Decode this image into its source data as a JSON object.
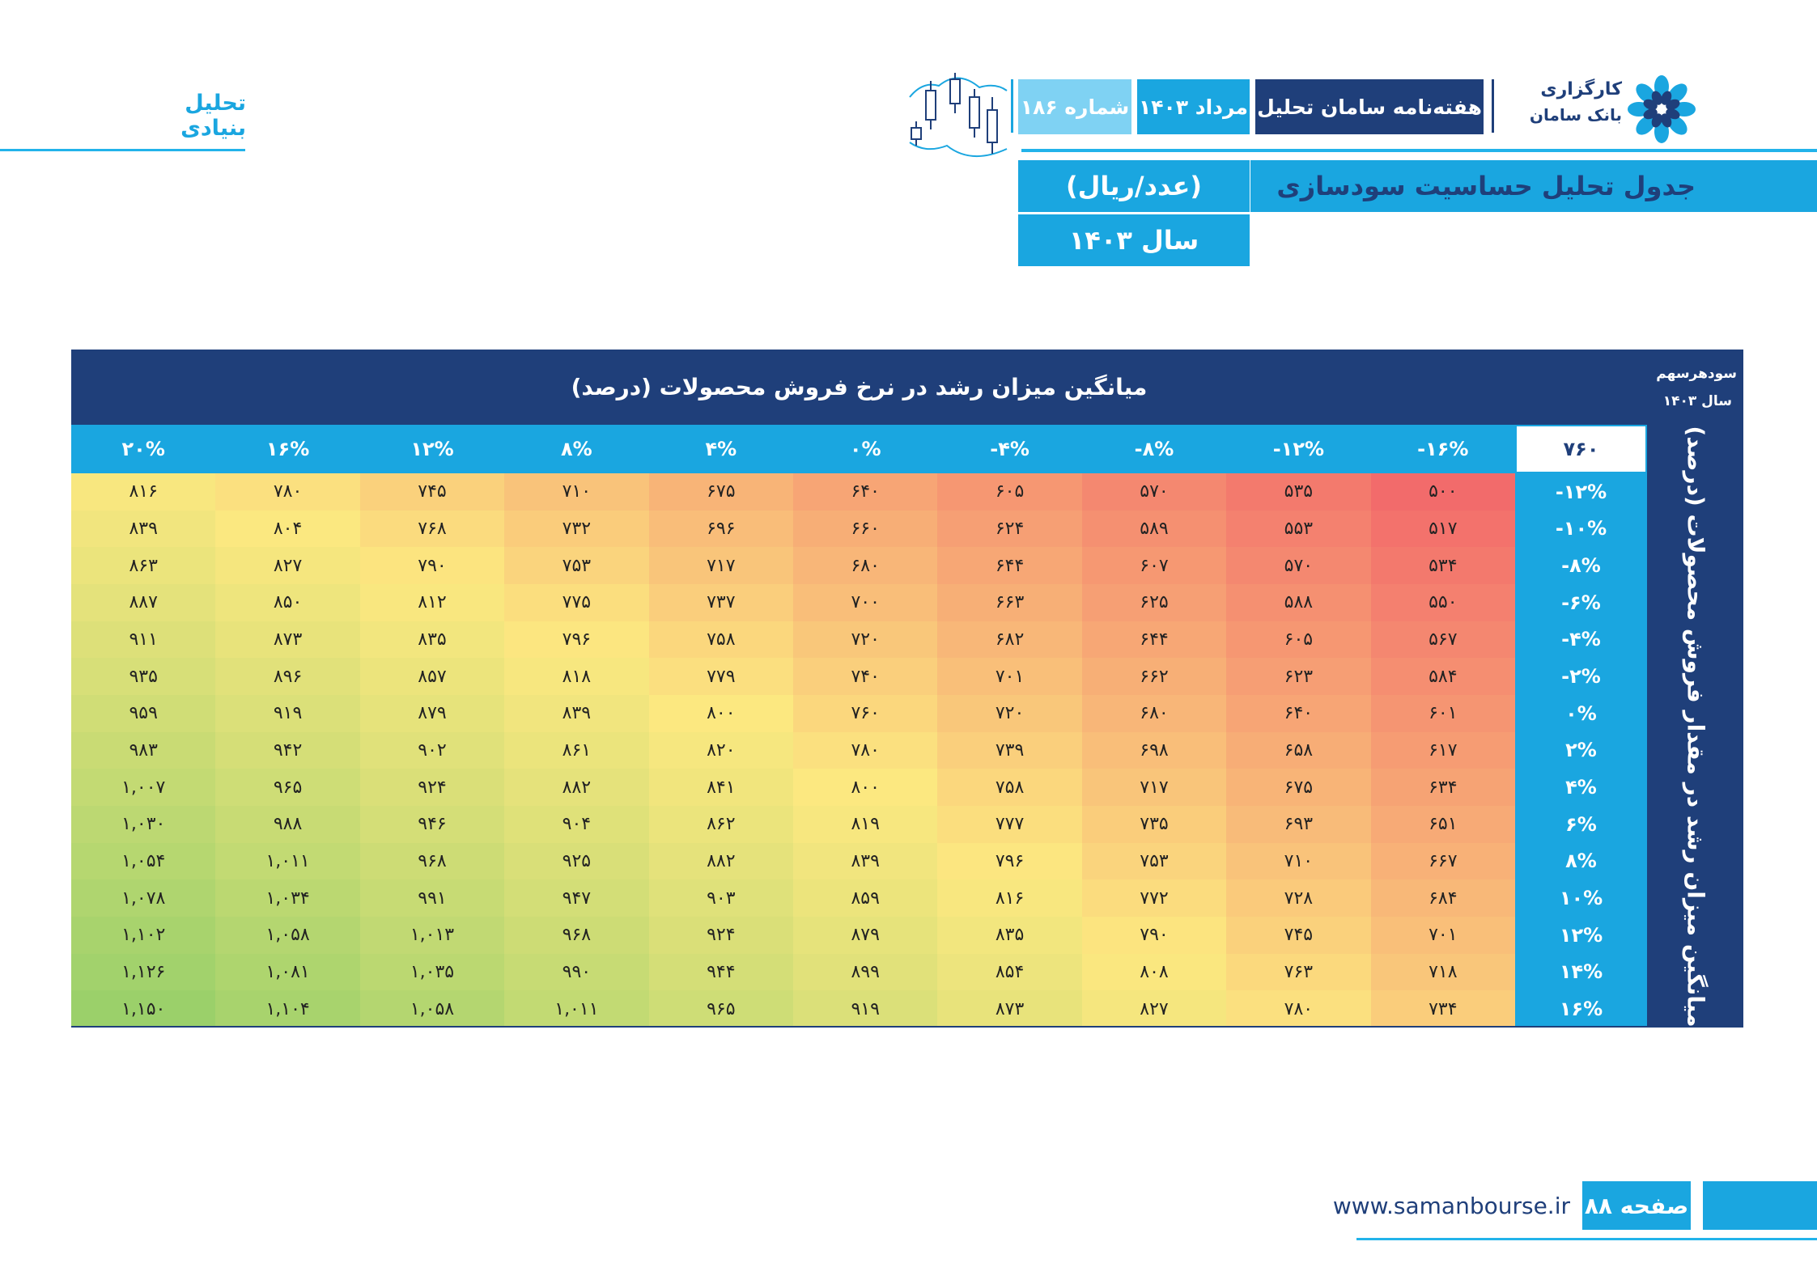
{
  "section_title": "تحلیل بنیادی",
  "brand": {
    "name": "کارگزاری",
    "sub": "بانک سامان"
  },
  "header": {
    "weekly": "هفته‌نامه سامان تحلیل",
    "month": "مرداد ۱۴۰۳",
    "issue": "شماره ۱۸۶"
  },
  "table_title": "جدول تحلیل حساسیت سودسازی",
  "unit": "(عدد/ریال)",
  "year": "سال ۱۴۰۳",
  "table": {
    "top_label": "میانگین میزان رشد در نرخ فروش محصولات (درصد)",
    "corner_label_1": "سودهرسهم",
    "corner_label_2": "سال ۱۴۰۳",
    "corner_value": "۷۶۰",
    "side_label": "میانگین میزان رشد در مقدار فروش محصولات (درصد)",
    "columns": [
      "-۱۶%",
      "-۱۲%",
      "-۸%",
      "-۴%",
      "۰%",
      "۴%",
      "۸%",
      "۱۲%",
      "۱۶%",
      "۲۰%"
    ],
    "rows": [
      {
        "label": "-۱۲%",
        "values": [
          "۵۰۰",
          "۵۳۵",
          "۵۷۰",
          "۶۰۵",
          "۶۴۰",
          "۶۷۵",
          "۷۱۰",
          "۷۴۵",
          "۷۸۰",
          "۸۱۶"
        ]
      },
      {
        "label": "-۱۰%",
        "values": [
          "۵۱۷",
          "۵۵۳",
          "۵۸۹",
          "۶۲۴",
          "۶۶۰",
          "۶۹۶",
          "۷۳۲",
          "۷۶۸",
          "۸۰۴",
          "۸۳۹"
        ]
      },
      {
        "label": "-۸%",
        "values": [
          "۵۳۴",
          "۵۷۰",
          "۶۰۷",
          "۶۴۴",
          "۶۸۰",
          "۷۱۷",
          "۷۵۳",
          "۷۹۰",
          "۸۲۷",
          "۸۶۳"
        ]
      },
      {
        "label": "-۶%",
        "values": [
          "۵۵۰",
          "۵۸۸",
          "۶۲۵",
          "۶۶۳",
          "۷۰۰",
          "۷۳۷",
          "۷۷۵",
          "۸۱۲",
          "۸۵۰",
          "۸۸۷"
        ]
      },
      {
        "label": "-۴%",
        "values": [
          "۵۶۷",
          "۶۰۵",
          "۶۴۴",
          "۶۸۲",
          "۷۲۰",
          "۷۵۸",
          "۷۹۶",
          "۸۳۵",
          "۸۷۳",
          "۹۱۱"
        ]
      },
      {
        "label": "-۲%",
        "values": [
          "۵۸۴",
          "۶۲۳",
          "۶۶۲",
          "۷۰۱",
          "۷۴۰",
          "۷۷۹",
          "۸۱۸",
          "۸۵۷",
          "۸۹۶",
          "۹۳۵"
        ]
      },
      {
        "label": "۰%",
        "values": [
          "۶۰۱",
          "۶۴۰",
          "۶۸۰",
          "۷۲۰",
          "۷۶۰",
          "۸۰۰",
          "۸۳۹",
          "۸۷۹",
          "۹۱۹",
          "۹۵۹"
        ]
      },
      {
        "label": "۲%",
        "values": [
          "۶۱۷",
          "۶۵۸",
          "۶۹۸",
          "۷۳۹",
          "۷۸۰",
          "۸۲۰",
          "۸۶۱",
          "۹۰۲",
          "۹۴۲",
          "۹۸۳"
        ]
      },
      {
        "label": "۴%",
        "values": [
          "۶۳۴",
          "۶۷۵",
          "۷۱۷",
          "۷۵۸",
          "۸۰۰",
          "۸۴۱",
          "۸۸۲",
          "۹۲۴",
          "۹۶۵",
          "۱,۰۰۷"
        ]
      },
      {
        "label": "۶%",
        "values": [
          "۶۵۱",
          "۶۹۳",
          "۷۳۵",
          "۷۷۷",
          "۸۱۹",
          "۸۶۲",
          "۹۰۴",
          "۹۴۶",
          "۹۸۸",
          "۱,۰۳۰"
        ]
      },
      {
        "label": "۸%",
        "values": [
          "۶۶۷",
          "۷۱۰",
          "۷۵۳",
          "۷۹۶",
          "۸۳۹",
          "۸۸۲",
          "۹۲۵",
          "۹۶۸",
          "۱,۰۱۱",
          "۱,۰۵۴"
        ]
      },
      {
        "label": "۱۰%",
        "values": [
          "۶۸۴",
          "۷۲۸",
          "۷۷۲",
          "۸۱۶",
          "۸۵۹",
          "۹۰۳",
          "۹۴۷",
          "۹۹۱",
          "۱,۰۳۴",
          "۱,۰۷۸"
        ]
      },
      {
        "label": "۱۲%",
        "values": [
          "۷۰۱",
          "۷۴۵",
          "۷۹۰",
          "۸۳۵",
          "۸۷۹",
          "۹۲۴",
          "۹۶۸",
          "۱,۰۱۳",
          "۱,۰۵۸",
          "۱,۱۰۲"
        ]
      },
      {
        "label": "۱۴%",
        "values": [
          "۷۱۸",
          "۷۶۳",
          "۸۰۸",
          "۸۵۴",
          "۸۹۹",
          "۹۴۴",
          "۹۹۰",
          "۱,۰۳۵",
          "۱,۰۸۱",
          "۱,۱۲۶"
        ]
      },
      {
        "label": "۱۶%",
        "values": [
          "۷۳۴",
          "۷۸۰",
          "۸۲۷",
          "۸۷۳",
          "۹۱۹",
          "۹۶۵",
          "۱,۰۱۱",
          "۱,۰۵۸",
          "۱,۱۰۴",
          "۱,۱۵۰"
        ]
      }
    ]
  },
  "footer": {
    "url": "www.samanbourse.ir",
    "page": "صفحه ۸۸"
  },
  "colors": {
    "navy": "#1f3f7a",
    "blue": "#1aa6e0",
    "low": "#f26b6b",
    "mid": "#fce880",
    "high": "#9bd06a"
  }
}
